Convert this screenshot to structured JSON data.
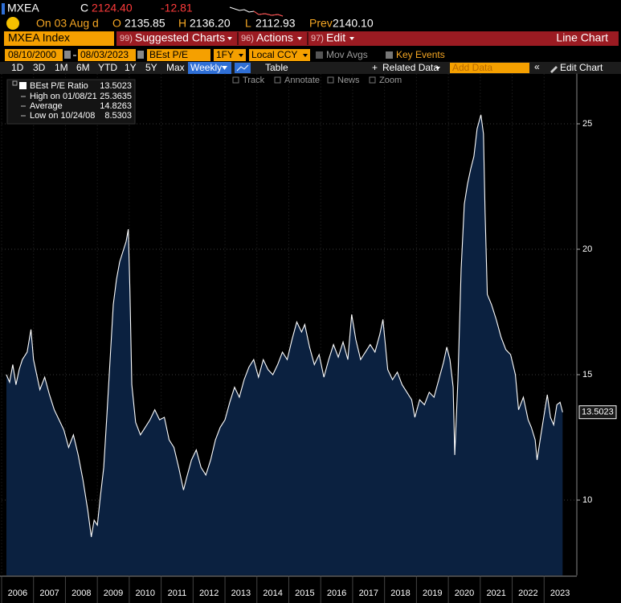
{
  "quote": {
    "ticker": "MXEA",
    "close_label": "C",
    "close": "2124.40",
    "change": "-12.81",
    "date": "On 03 Aug d",
    "open_label": "O",
    "open": "2135.85",
    "high_label": "H",
    "high": "2136.20",
    "low_label": "L",
    "low": "2112.93",
    "prev_label": "Prev",
    "prev": "2140.10"
  },
  "toolbar": {
    "security": "MXEA Index",
    "menus": [
      {
        "num": "99)",
        "label": "Suggested Charts"
      },
      {
        "num": "96)",
        "label": "Actions"
      },
      {
        "num": "97)",
        "label": "Edit"
      }
    ],
    "chart_kind": "Line Chart"
  },
  "controls": {
    "start": "08/10/2000",
    "end": "08/03/2023",
    "field": "BEst P/E",
    "period": "1FY",
    "currency": "Local CCY",
    "mov_avgs": "Mov Avgs",
    "key_events": "Key Events",
    "ranges": [
      "1D",
      "3D",
      "1M",
      "6M",
      "YTD",
      "1Y",
      "5Y",
      "Max"
    ],
    "frequency": "Weekly",
    "table": "Table",
    "related": "Related Data",
    "add_data": "Add Data",
    "edit_chart": "Edit Chart",
    "tools": [
      "Track",
      "Annotate",
      "News",
      "Zoom"
    ]
  },
  "chart_data": {
    "type": "area",
    "x": [
      2006.15,
      2006.25,
      2006.35,
      2006.45,
      2006.55,
      2006.65,
      2006.8,
      2006.92,
      2007.0,
      2007.1,
      2007.2,
      2007.35,
      2007.5,
      2007.65,
      2007.8,
      2007.95,
      2008.1,
      2008.25,
      2008.4,
      2008.55,
      2008.7,
      2008.81,
      2008.9,
      2009.0,
      2009.1,
      2009.2,
      2009.3,
      2009.4,
      2009.5,
      2009.6,
      2009.7,
      2009.8,
      2009.9,
      2009.97,
      2010.02,
      2010.08,
      2010.2,
      2010.35,
      2010.5,
      2010.65,
      2010.8,
      2010.95,
      2011.1,
      2011.25,
      2011.4,
      2011.55,
      2011.7,
      2011.8,
      2011.95,
      2012.1,
      2012.25,
      2012.4,
      2012.55,
      2012.7,
      2012.85,
      2013.0,
      2013.15,
      2013.3,
      2013.45,
      2013.6,
      2013.75,
      2013.9,
      2014.05,
      2014.2,
      2014.35,
      2014.5,
      2014.65,
      2014.8,
      2014.95,
      2015.1,
      2015.25,
      2015.4,
      2015.5,
      2015.65,
      2015.8,
      2015.95,
      2016.1,
      2016.25,
      2016.4,
      2016.55,
      2016.7,
      2016.85,
      2016.97,
      2017.1,
      2017.25,
      2017.4,
      2017.55,
      2017.7,
      2017.85,
      2017.95,
      2018.1,
      2018.25,
      2018.4,
      2018.55,
      2018.7,
      2018.85,
      2018.95,
      2019.1,
      2019.25,
      2019.4,
      2019.55,
      2019.7,
      2019.85,
      2019.95,
      2020.05,
      2020.15,
      2020.2,
      2020.3,
      2020.4,
      2020.5,
      2020.6,
      2020.7,
      2020.8,
      2020.9,
      2021.02,
      2021.1,
      2021.15,
      2021.22,
      2021.35,
      2021.5,
      2021.65,
      2021.8,
      2021.95,
      2022.1,
      2022.2,
      2022.35,
      2022.5,
      2022.6,
      2022.72,
      2022.78,
      2022.9,
      2023.0,
      2023.1,
      2023.2,
      2023.3,
      2023.4,
      2023.5,
      2023.58
    ],
    "series": [
      {
        "name": "BEst P/E Ratio",
        "color": "#ffffff",
        "fill": "#0b2140",
        "values": [
          15.0,
          14.7,
          15.4,
          14.6,
          15.2,
          15.6,
          15.9,
          16.8,
          15.6,
          15.0,
          14.4,
          14.9,
          14.2,
          13.6,
          13.2,
          12.8,
          12.1,
          12.6,
          11.8,
          10.8,
          9.6,
          8.53,
          9.2,
          9.0,
          10.2,
          11.3,
          13.4,
          15.6,
          17.8,
          18.8,
          19.5,
          19.9,
          20.3,
          20.8,
          18.4,
          14.6,
          13.1,
          12.6,
          12.9,
          13.2,
          13.6,
          13.2,
          13.3,
          12.4,
          12.1,
          11.3,
          10.4,
          10.9,
          11.6,
          12.0,
          11.3,
          11.0,
          11.6,
          12.4,
          12.9,
          13.2,
          13.9,
          14.5,
          14.1,
          14.8,
          15.3,
          15.6,
          14.9,
          15.6,
          15.2,
          15.0,
          15.4,
          15.9,
          15.6,
          16.4,
          17.1,
          16.7,
          17.0,
          16.1,
          15.4,
          15.8,
          14.9,
          15.6,
          16.2,
          15.7,
          16.3,
          15.6,
          17.4,
          16.4,
          15.6,
          15.9,
          16.2,
          15.9,
          16.6,
          17.2,
          15.2,
          14.8,
          15.1,
          14.6,
          14.3,
          14.0,
          13.3,
          14.0,
          13.8,
          14.3,
          14.1,
          14.8,
          15.5,
          16.1,
          15.6,
          14.5,
          11.8,
          14.8,
          19.2,
          21.8,
          22.6,
          23.2,
          23.7,
          24.8,
          25.36,
          24.6,
          21.5,
          18.2,
          17.8,
          17.2,
          16.5,
          16.0,
          15.8,
          15.0,
          13.6,
          14.1,
          13.2,
          12.9,
          12.4,
          11.6,
          12.6,
          13.4,
          14.2,
          13.3,
          13.0,
          13.8,
          13.9,
          13.5023
        ]
      }
    ],
    "stats": [
      {
        "label": "High on 01/08/21",
        "value": 25.3635
      },
      {
        "label": "Average",
        "value": 14.8263
      },
      {
        "label": "Low on 10/24/08",
        "value": 8.5303
      }
    ],
    "xlim": [
      2006,
      2024
    ],
    "xticks": [
      2006,
      2007,
      2008,
      2009,
      2010,
      2011,
      2012,
      2013,
      2014,
      2015,
      2016,
      2017,
      2018,
      2019,
      2020,
      2021,
      2022,
      2023
    ],
    "ylim": [
      7,
      27
    ],
    "yticks": [
      10,
      15,
      20,
      25
    ],
    "grid": true
  }
}
